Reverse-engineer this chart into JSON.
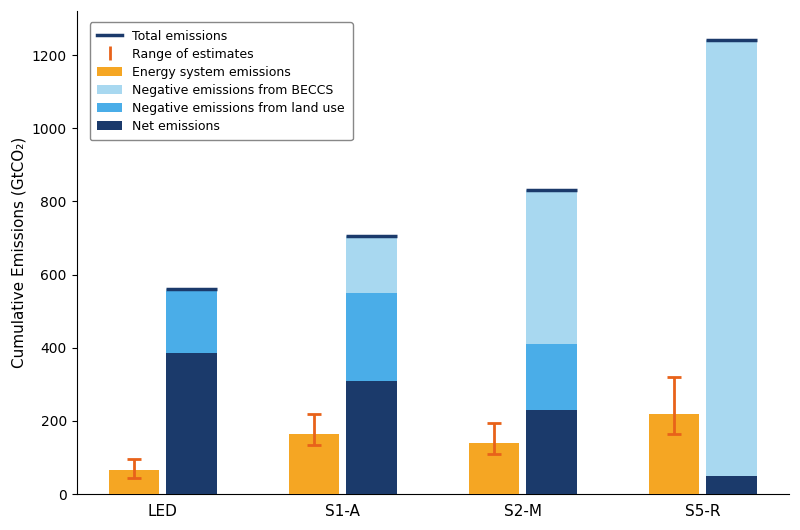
{
  "categories": [
    "LED",
    "S1-A",
    "S2-M",
    "S5-R"
  ],
  "energy_system_emissions": [
    65,
    165,
    140,
    220
  ],
  "energy_error_low": [
    20,
    30,
    30,
    55
  ],
  "energy_error_high": [
    30,
    55,
    55,
    100
  ],
  "net_emissions": [
    385,
    310,
    230,
    50
  ],
  "neg_land_use": [
    170,
    240,
    180,
    0
  ],
  "neg_beccs": [
    5,
    155,
    420,
    1190
  ],
  "total_emissions": [
    560,
    705,
    830,
    1240
  ],
  "colors": {
    "energy": "#F5A623",
    "net": "#1B3A6B",
    "neg_land": "#4AADE8",
    "neg_beccs": "#A8D8F0",
    "total_line": "#1B3A6B",
    "error_bar": "#E8621A"
  },
  "ylabel": "Cumulative Emissions (GtCO₂)",
  "ylim": [
    0,
    1320
  ],
  "yticks": [
    0,
    200,
    400,
    600,
    800,
    1000,
    1200
  ],
  "bar_width": 0.28,
  "group_positions": [
    0.0,
    1.0,
    2.0,
    3.0
  ],
  "bar_gap": 0.04,
  "figsize": [
    8.0,
    5.3
  ],
  "dpi": 100
}
